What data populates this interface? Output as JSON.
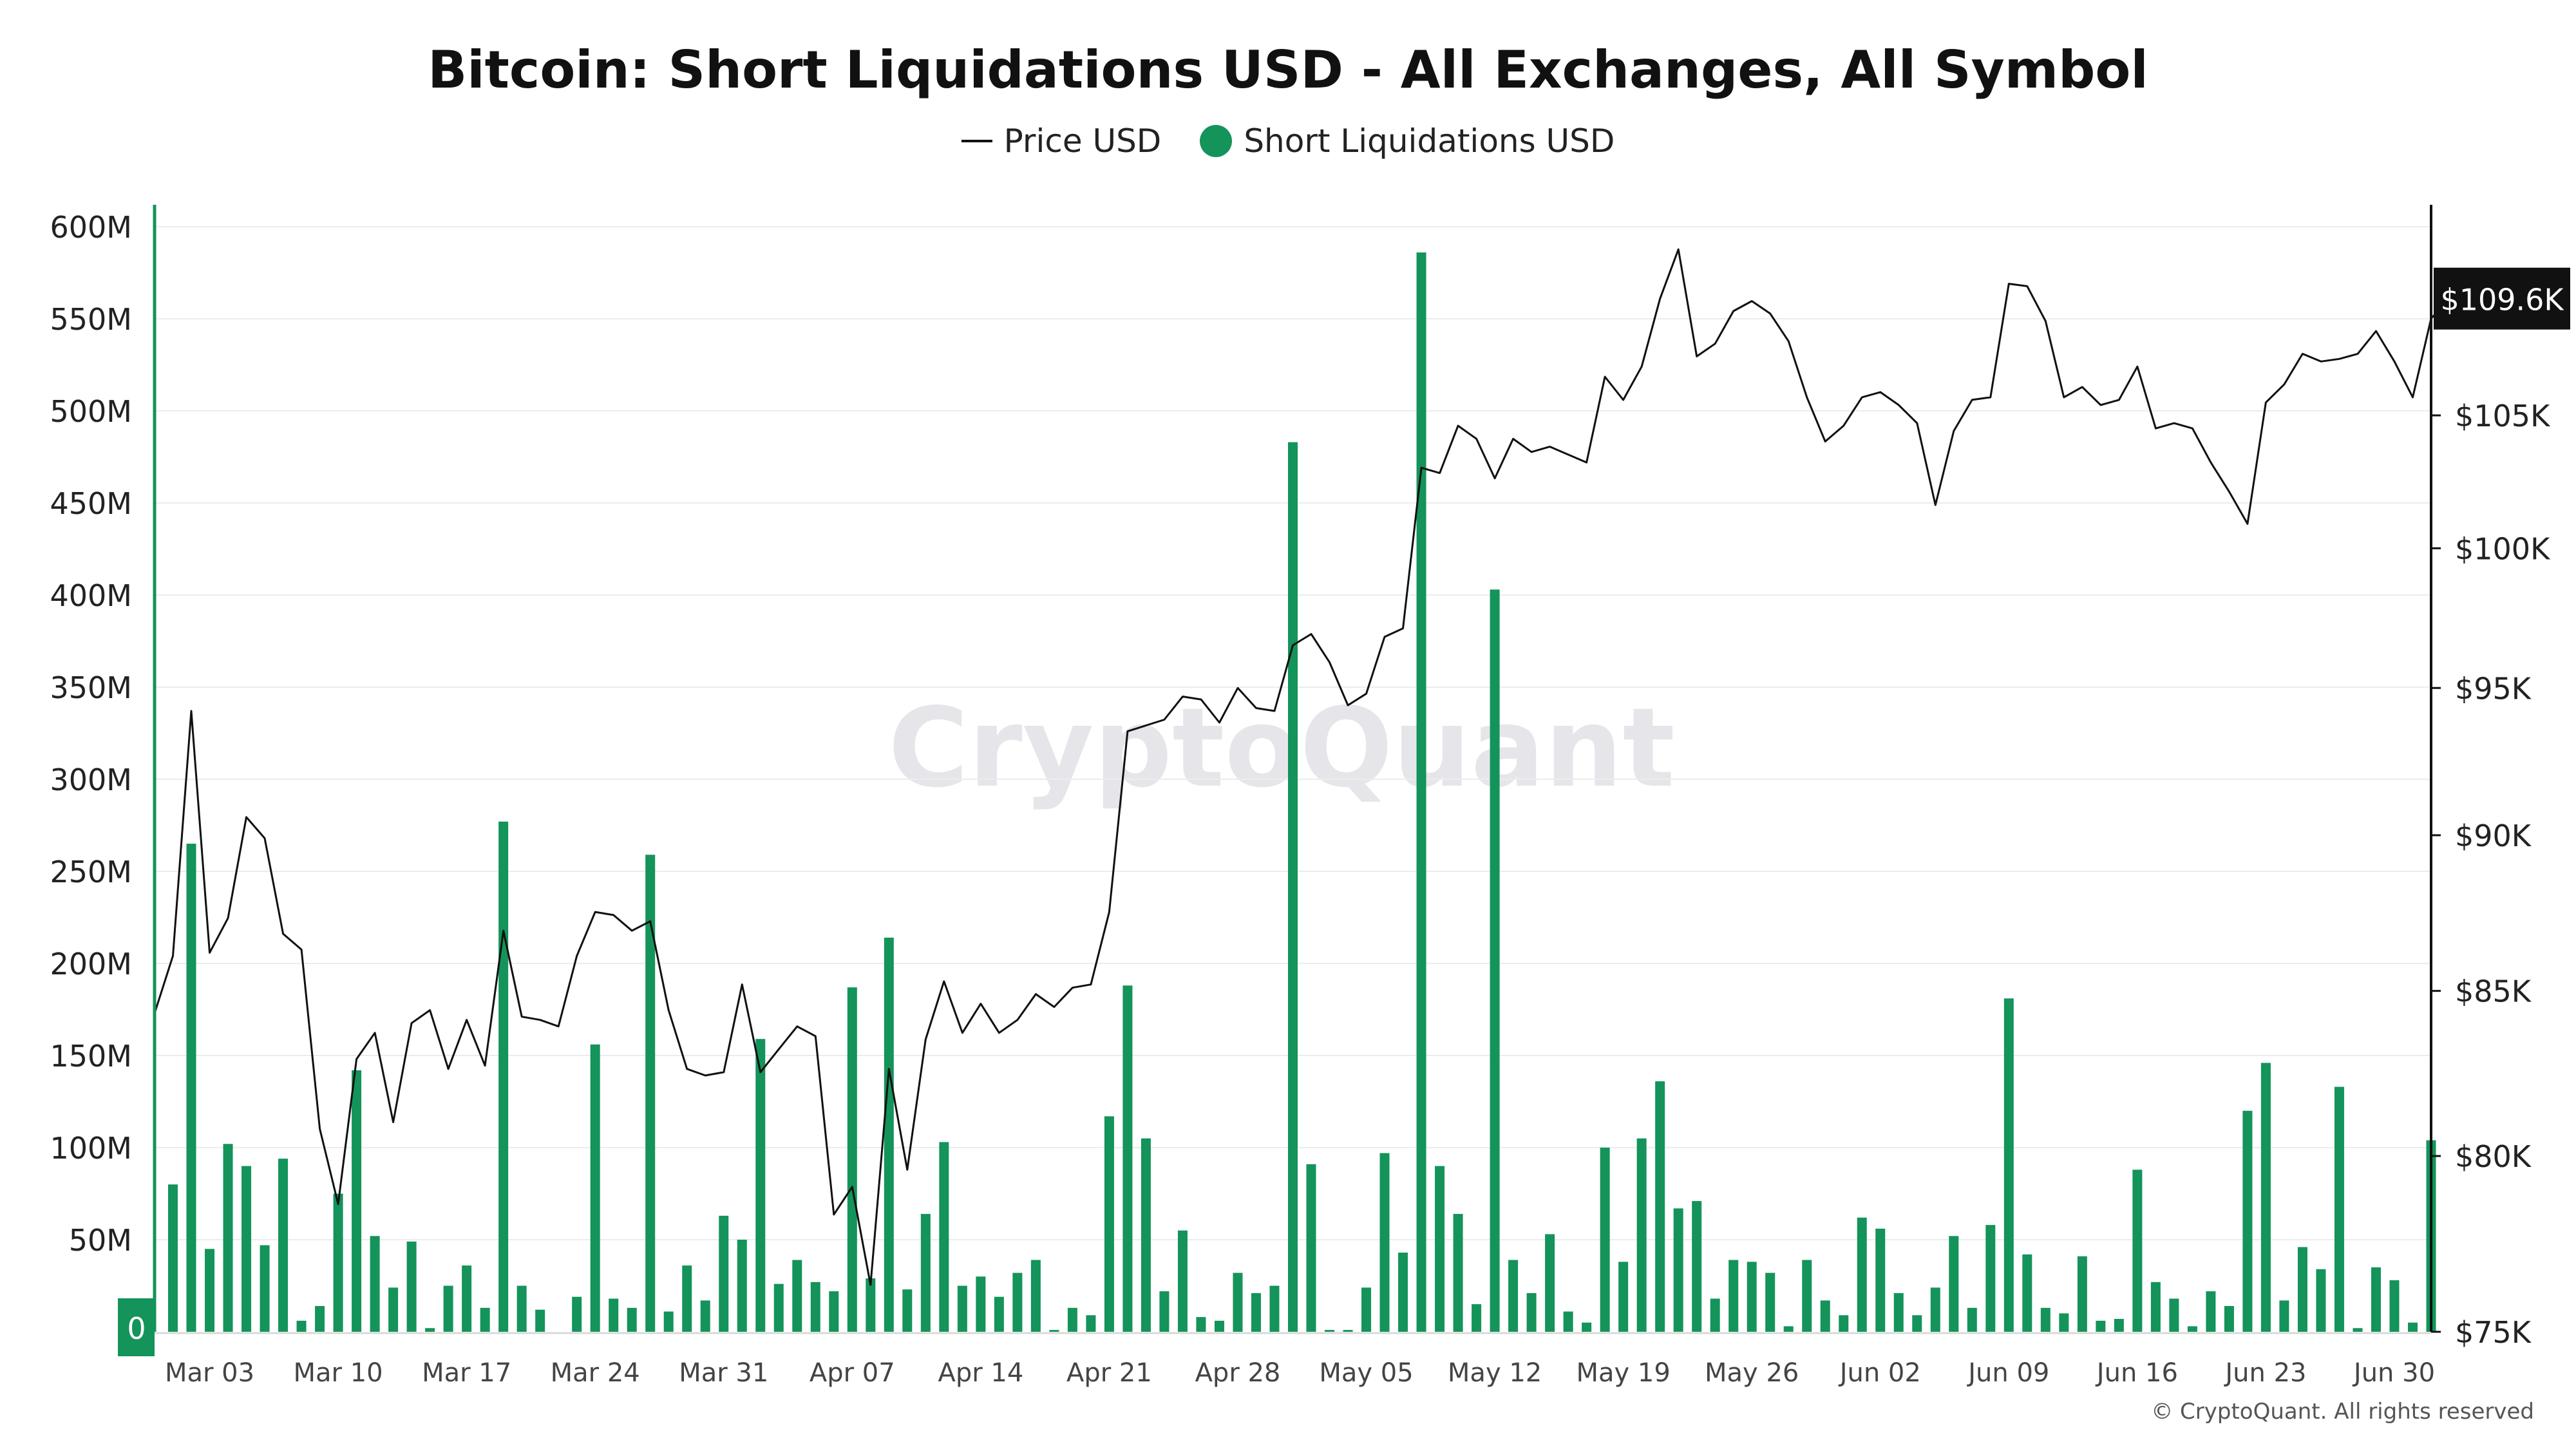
{
  "colors": {
    "bar": "#14935a",
    "line": "#111111",
    "accent": "#14935a",
    "price_tag_bg": "#111111",
    "grid": "#ececec",
    "watermark": "#e6e6ea"
  },
  "watermark": "CryptoQuant",
  "copyright": "© CryptoQuant. All rights reserved",
  "chart_data": {
    "type": "bar",
    "title": "Bitcoin: Short Liquidations USD - All Exchanges, All Symbol",
    "legend": {
      "position": "top-center",
      "items": [
        "Price USD",
        "Short Liquidations USD"
      ]
    },
    "x_range": [
      "2025-02-28",
      "2025-07-02"
    ],
    "x_ticks": [
      {
        "date": "2025-03-03",
        "label": "Mar 03"
      },
      {
        "date": "2025-03-10",
        "label": "Mar 10"
      },
      {
        "date": "2025-03-17",
        "label": "Mar 17"
      },
      {
        "date": "2025-03-24",
        "label": "Mar 24"
      },
      {
        "date": "2025-03-31",
        "label": "Mar 31"
      },
      {
        "date": "2025-04-07",
        "label": "Apr 07"
      },
      {
        "date": "2025-04-14",
        "label": "Apr 14"
      },
      {
        "date": "2025-04-21",
        "label": "Apr 21"
      },
      {
        "date": "2025-04-28",
        "label": "Apr 28"
      },
      {
        "date": "2025-05-05",
        "label": "May 05"
      },
      {
        "date": "2025-05-12",
        "label": "May 12"
      },
      {
        "date": "2025-05-19",
        "label": "May 19"
      },
      {
        "date": "2025-05-26",
        "label": "May 26"
      },
      {
        "date": "2025-06-02",
        "label": "Jun 02"
      },
      {
        "date": "2025-06-09",
        "label": "Jun 09"
      },
      {
        "date": "2025-06-16",
        "label": "Jun 16"
      },
      {
        "date": "2025-06-23",
        "label": "Jun 23"
      },
      {
        "date": "2025-06-30",
        "label": "Jun 30"
      }
    ],
    "y_left": {
      "range": [
        0,
        600000000
      ],
      "ticks": [
        {
          "value": 0,
          "label": "0"
        },
        {
          "value": 50000000,
          "label": "50M"
        },
        {
          "value": 100000000,
          "label": "100M"
        },
        {
          "value": 150000000,
          "label": "150M"
        },
        {
          "value": 200000000,
          "label": "200M"
        },
        {
          "value": 250000000,
          "label": "250M"
        },
        {
          "value": 300000000,
          "label": "300M"
        },
        {
          "value": 350000000,
          "label": "350M"
        },
        {
          "value": 400000000,
          "label": "400M"
        },
        {
          "value": 450000000,
          "label": "450M"
        },
        {
          "value": 500000000,
          "label": "500M"
        },
        {
          "value": 550000000,
          "label": "550M"
        },
        {
          "value": 600000000,
          "label": "600M"
        }
      ]
    },
    "y_right": {
      "scale": "log",
      "ticks": [
        {
          "value": 75000,
          "label": "$75K"
        },
        {
          "value": 80000,
          "label": "$80K"
        },
        {
          "value": 85000,
          "label": "$85K"
        },
        {
          "value": 90000,
          "label": "$90K"
        },
        {
          "value": 95000,
          "label": "$95K"
        },
        {
          "value": 100000,
          "label": "$100K"
        },
        {
          "value": 105000,
          "label": "$105K"
        }
      ],
      "current_value": 109600,
      "current_label": "$109.6K"
    },
    "series": [
      {
        "name": "Short Liquidations USD",
        "type": "bar",
        "start_date": "2025-03-01",
        "values": [
          80000000,
          265000000,
          45000000,
          102000000,
          90000000,
          47000000,
          94000000,
          6000000,
          14000000,
          75000000,
          142000000,
          52000000,
          24000000,
          49000000,
          2000000,
          25000000,
          36000000,
          13000000,
          277000000,
          25000000,
          12000000,
          0,
          19000000,
          156000000,
          18000000,
          13000000,
          259000000,
          11000000,
          36000000,
          17000000,
          63000000,
          50000000,
          159000000,
          26000000,
          39000000,
          27000000,
          22000000,
          187000000,
          29000000,
          214000000,
          23000000,
          64000000,
          103000000,
          25000000,
          30000000,
          19000000,
          32000000,
          39000000,
          1000000,
          13000000,
          9000000,
          117000000,
          188000000,
          105000000,
          22000000,
          55000000,
          8000000,
          6000000,
          32000000,
          21000000,
          25000000,
          483000000,
          91000000,
          1000000,
          1000000,
          24000000,
          97000000,
          43000000,
          586000000,
          90000000,
          64000000,
          15000000,
          403000000,
          39000000,
          21000000,
          53000000,
          11000000,
          5000000,
          100000000,
          38000000,
          105000000,
          136000000,
          67000000,
          71000000,
          18000000,
          39000000,
          38000000,
          32000000,
          3000000,
          39000000,
          17000000,
          9000000,
          62000000,
          56000000,
          21000000,
          9000000,
          24000000,
          52000000,
          13000000,
          58000000,
          181000000,
          42000000,
          13000000,
          10000000,
          41000000,
          6000000,
          7000000,
          88000000,
          27000000,
          18000000,
          3000000,
          22000000,
          14000000,
          120000000,
          146000000,
          17000000,
          46000000,
          34000000,
          133000000,
          2000000,
          35000000,
          28000000,
          5000000,
          104000000
        ]
      },
      {
        "name": "Price USD",
        "type": "line",
        "points": [
          [
            "2025-02-28",
            84300
          ],
          [
            "2025-03-01",
            86100
          ],
          [
            "2025-03-02",
            94200
          ],
          [
            "2025-03-03",
            86200
          ],
          [
            "2025-03-04",
            87300
          ],
          [
            "2025-03-05",
            90600
          ],
          [
            "2025-03-06",
            89900
          ],
          [
            "2025-03-07",
            86800
          ],
          [
            "2025-03-08",
            86300
          ],
          [
            "2025-03-09",
            80800
          ],
          [
            "2025-03-10",
            78600
          ],
          [
            "2025-03-11",
            82900
          ],
          [
            "2025-03-12",
            83700
          ],
          [
            "2025-03-13",
            81000
          ],
          [
            "2025-03-14",
            84000
          ],
          [
            "2025-03-15",
            84400
          ],
          [
            "2025-03-16",
            82600
          ],
          [
            "2025-03-17",
            84100
          ],
          [
            "2025-03-18",
            82700
          ],
          [
            "2025-03-19",
            86900
          ],
          [
            "2025-03-20",
            84200
          ],
          [
            "2025-03-21",
            84100
          ],
          [
            "2025-03-22",
            83900
          ],
          [
            "2025-03-23",
            86100
          ],
          [
            "2025-03-24",
            87500
          ],
          [
            "2025-03-25",
            87400
          ],
          [
            "2025-03-26",
            86900
          ],
          [
            "2025-03-27",
            87200
          ],
          [
            "2025-03-28",
            84400
          ],
          [
            "2025-03-29",
            82600
          ],
          [
            "2025-03-30",
            82400
          ],
          [
            "2025-03-31",
            82500
          ],
          [
            "2025-04-01",
            85200
          ],
          [
            "2025-04-02",
            82500
          ],
          [
            "2025-04-03",
            83200
          ],
          [
            "2025-04-04",
            83900
          ],
          [
            "2025-04-05",
            83600
          ],
          [
            "2025-04-06",
            78300
          ],
          [
            "2025-04-07",
            79100
          ],
          [
            "2025-04-08",
            76300
          ],
          [
            "2025-04-09",
            82600
          ],
          [
            "2025-04-10",
            79600
          ],
          [
            "2025-04-11",
            83500
          ],
          [
            "2025-04-12",
            85300
          ],
          [
            "2025-04-13",
            83700
          ],
          [
            "2025-04-14",
            84600
          ],
          [
            "2025-04-15",
            83700
          ],
          [
            "2025-04-16",
            84100
          ],
          [
            "2025-04-17",
            84900
          ],
          [
            "2025-04-18",
            84500
          ],
          [
            "2025-04-19",
            85100
          ],
          [
            "2025-04-20",
            85200
          ],
          [
            "2025-04-21",
            87500
          ],
          [
            "2025-04-22",
            93500
          ],
          [
            "2025-04-23",
            93700
          ],
          [
            "2025-04-24",
            93900
          ],
          [
            "2025-04-25",
            94700
          ],
          [
            "2025-04-26",
            94600
          ],
          [
            "2025-04-27",
            93800
          ],
          [
            "2025-04-28",
            95000
          ],
          [
            "2025-04-29",
            94300
          ],
          [
            "2025-04-30",
            94200
          ],
          [
            "2025-05-01",
            96500
          ],
          [
            "2025-05-02",
            96900
          ],
          [
            "2025-05-03",
            95900
          ],
          [
            "2025-05-04",
            94400
          ],
          [
            "2025-05-05",
            94800
          ],
          [
            "2025-05-06",
            96800
          ],
          [
            "2025-05-07",
            97100
          ],
          [
            "2025-05-08",
            103000
          ],
          [
            "2025-05-09",
            102800
          ],
          [
            "2025-05-10",
            104600
          ],
          [
            "2025-05-11",
            104100
          ],
          [
            "2025-05-12",
            102600
          ],
          [
            "2025-05-13",
            104100
          ],
          [
            "2025-05-14",
            103600
          ],
          [
            "2025-05-15",
            103800
          ],
          [
            "2025-05-16",
            103500
          ],
          [
            "2025-05-17",
            103200
          ],
          [
            "2025-05-18",
            106500
          ],
          [
            "2025-05-19",
            105600
          ],
          [
            "2025-05-20",
            106900
          ],
          [
            "2025-05-21",
            109600
          ],
          [
            "2025-05-22",
            111600
          ],
          [
            "2025-05-23",
            107300
          ],
          [
            "2025-05-24",
            107800
          ],
          [
            "2025-05-25",
            109100
          ],
          [
            "2025-05-26",
            109500
          ],
          [
            "2025-05-27",
            109000
          ],
          [
            "2025-05-28",
            107900
          ],
          [
            "2025-05-29",
            105700
          ],
          [
            "2025-05-30",
            104000
          ],
          [
            "2025-05-31",
            104600
          ],
          [
            "2025-06-01",
            105700
          ],
          [
            "2025-06-02",
            105900
          ],
          [
            "2025-06-03",
            105400
          ],
          [
            "2025-06-04",
            104700
          ],
          [
            "2025-06-05",
            101600
          ],
          [
            "2025-06-06",
            104400
          ],
          [
            "2025-06-07",
            105600
          ],
          [
            "2025-06-08",
            105700
          ],
          [
            "2025-06-09",
            110200
          ],
          [
            "2025-06-10",
            110100
          ],
          [
            "2025-06-11",
            108700
          ],
          [
            "2025-06-12",
            105700
          ],
          [
            "2025-06-13",
            106100
          ],
          [
            "2025-06-14",
            105400
          ],
          [
            "2025-06-15",
            105600
          ],
          [
            "2025-06-16",
            106900
          ],
          [
            "2025-06-17",
            104500
          ],
          [
            "2025-06-18",
            104700
          ],
          [
            "2025-06-19",
            104500
          ],
          [
            "2025-06-20",
            103200
          ],
          [
            "2025-06-21",
            102100
          ],
          [
            "2025-06-22",
            100900
          ],
          [
            "2025-06-23",
            105500
          ],
          [
            "2025-06-24",
            106200
          ],
          [
            "2025-06-25",
            107400
          ],
          [
            "2025-06-26",
            107100
          ],
          [
            "2025-06-27",
            107200
          ],
          [
            "2025-06-28",
            107400
          ],
          [
            "2025-06-29",
            108300
          ],
          [
            "2025-06-30",
            107100
          ],
          [
            "2025-07-01",
            105700
          ],
          [
            "2025-07-02",
            108800
          ],
          [
            "2025-07-03",
            109600
          ]
        ]
      }
    ]
  }
}
